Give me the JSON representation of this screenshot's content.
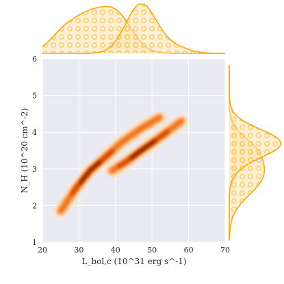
{
  "chart_data": {
    "type": "jointplot-kde",
    "xlabel": "L_bol,c (10^31 erg s^-1)",
    "ylabel": "N_H (10^20 cm^-2)",
    "xlim": [
      20,
      70
    ],
    "ylim": [
      1,
      6
    ],
    "x_ticks": [
      "20",
      "30",
      "40",
      "50",
      "60",
      "70"
    ],
    "y_ticks": [
      "1",
      "2",
      "3",
      "4",
      "5",
      "6"
    ],
    "grid": true,
    "background_color": "#EAEAF2",
    "series": [
      {
        "id": "population-a",
        "ridge": [
          {
            "x": 25,
            "y": 1.85
          },
          {
            "x": 29,
            "y": 2.45
          },
          {
            "x": 33,
            "y": 2.95
          },
          {
            "x": 37,
            "y": 3.3
          },
          {
            "x": 42,
            "y": 3.75
          },
          {
            "x": 47,
            "y": 4.1
          },
          {
            "x": 52,
            "y": 4.4
          }
        ],
        "peak": {
          "x": 33,
          "y": 2.95
        },
        "marginal_x_peak": 34,
        "marginal_y_peak": 2.85
      },
      {
        "id": "population-b",
        "ridge": [
          {
            "x": 39,
            "y": 2.95
          },
          {
            "x": 43,
            "y": 3.2
          },
          {
            "x": 47,
            "y": 3.5
          },
          {
            "x": 52,
            "y": 3.85
          },
          {
            "x": 58,
            "y": 4.3
          }
        ],
        "peak": {
          "x": 47.5,
          "y": 3.55
        },
        "marginal_x_peak": 47,
        "marginal_y_peak": 3.7
      }
    ]
  },
  "colors": {
    "kde_light": "#FDE5CD",
    "kde_mid": "#F16913",
    "kde_dark": "#7F2704",
    "marginal_line": "#FFA500",
    "marginal_fill": "#FFE3B0",
    "grid": "#FFFFFF"
  }
}
